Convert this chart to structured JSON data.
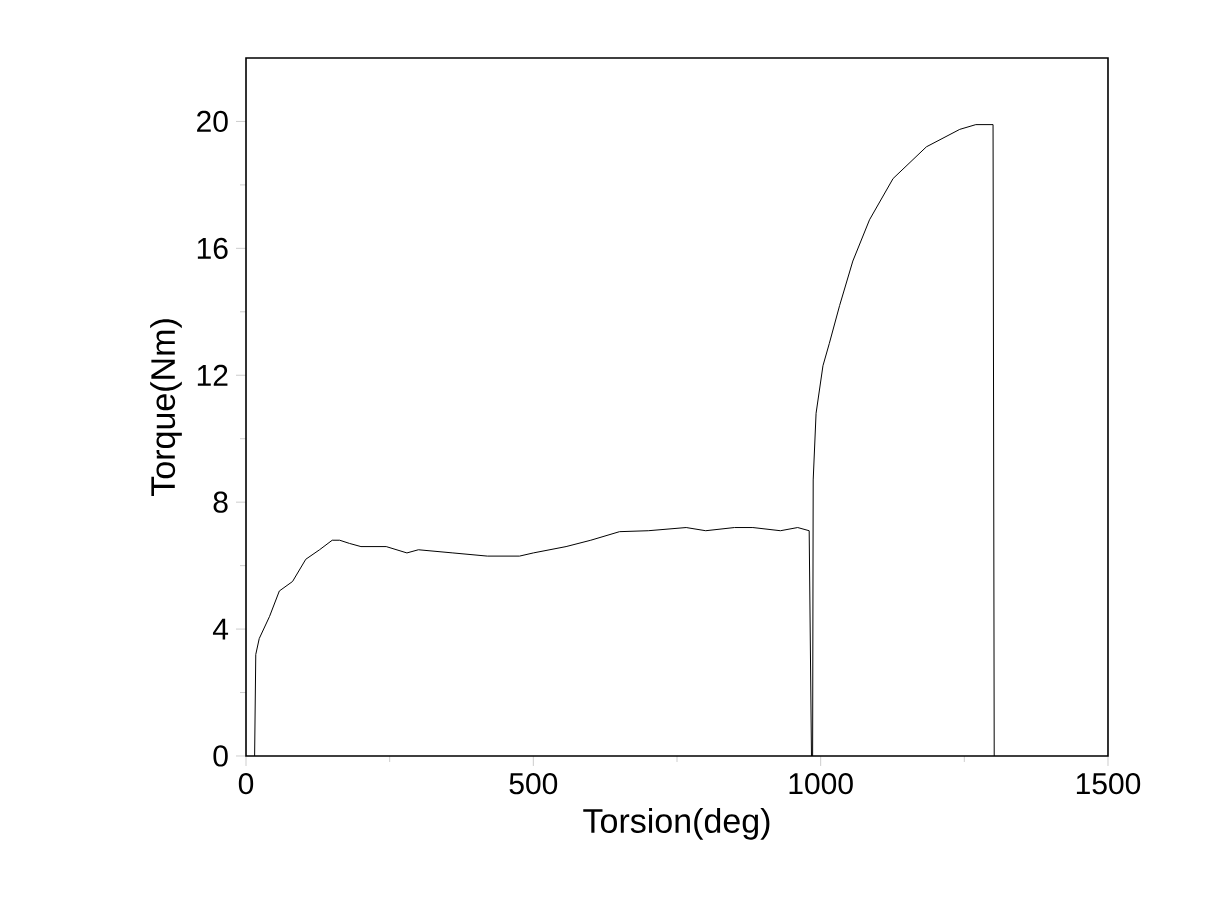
{
  "chart_data": {
    "type": "line",
    "xlabel": "Torsion(deg)",
    "ylabel": "Torque(Nm)",
    "xlim": [
      0,
      1500
    ],
    "ylim": [
      0,
      22
    ],
    "xticks": [
      0,
      500,
      1000,
      1500
    ],
    "yticks": [
      0,
      4,
      8,
      12,
      16,
      20
    ],
    "grid": false,
    "marker": "none",
    "line_style": "solid",
    "series": [
      {
        "color": "#000000",
        "x": [
          15,
          17,
          23,
          41,
          58,
          81,
          104,
          128,
          150,
          163,
          180,
          200,
          244,
          280,
          300,
          360,
          420,
          476,
          500,
          557,
          600,
          650,
          700,
          766,
          800,
          850,
          882,
          930,
          960,
          980,
          984,
          986,
          987,
          992,
          1004,
          1015,
          1033,
          1056,
          1085,
          1126,
          1184,
          1242,
          1270,
          1294,
          1300,
          1302
        ],
        "values": [
          0,
          3.2,
          3.7,
          4.4,
          5.2,
          5.5,
          6.2,
          6.5,
          6.8,
          6.8,
          6.7,
          6.6,
          6.6,
          6.4,
          6.5,
          6.4,
          6.3,
          6.3,
          6.4,
          6.6,
          6.8,
          7.07,
          7.1,
          7.2,
          7.1,
          7.2,
          7.2,
          7.1,
          7.2,
          7.1,
          0,
          0,
          8.7,
          10.8,
          12.3,
          13.0,
          14.2,
          15.6,
          16.9,
          18.2,
          19.2,
          19.75,
          19.9,
          19.9,
          19.9,
          0
        ]
      }
    ]
  }
}
